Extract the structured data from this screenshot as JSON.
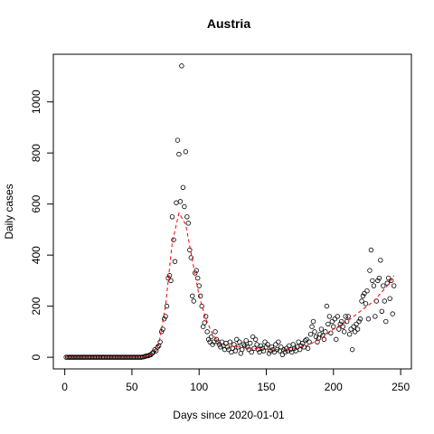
{
  "chart_data": {
    "type": "scatter",
    "title": "Austria",
    "xlabel": "Days since 2020-01-01",
    "ylabel": "Daily cases",
    "xlim": [
      -8.5,
      258
    ],
    "ylim": [
      -45.6,
      1186.6
    ],
    "xticks": [
      0,
      50,
      100,
      150,
      200,
      250
    ],
    "yticks": [
      0,
      200,
      400,
      600,
      800,
      1000
    ],
    "series": [
      {
        "color": "#000000",
        "marker": "open-circle",
        "x": [
          1,
          2,
          3,
          4,
          5,
          6,
          7,
          8,
          9,
          10,
          11,
          12,
          13,
          14,
          15,
          16,
          17,
          18,
          19,
          20,
          21,
          22,
          23,
          24,
          25,
          26,
          27,
          28,
          29,
          30,
          31,
          32,
          33,
          34,
          35,
          36,
          37,
          38,
          39,
          40,
          41,
          42,
          43,
          44,
          45,
          46,
          47,
          48,
          49,
          50,
          51,
          52,
          53,
          54,
          55,
          56,
          57,
          58,
          59,
          60,
          61,
          62,
          63,
          64,
          65,
          66,
          67,
          68,
          69,
          70,
          71,
          72,
          73,
          74,
          75,
          76,
          77,
          78,
          79,
          80,
          81,
          82,
          83,
          84,
          85,
          86,
          87,
          88,
          89,
          90,
          91,
          92,
          93,
          94,
          95,
          96,
          97,
          98,
          99,
          100,
          101,
          102,
          103,
          104,
          105,
          106,
          107,
          108,
          109,
          110,
          111,
          112,
          113,
          114,
          115,
          116,
          117,
          118,
          119,
          120,
          121,
          122,
          123,
          124,
          125,
          126,
          127,
          128,
          129,
          130,
          131,
          132,
          133,
          134,
          135,
          136,
          137,
          138,
          139,
          140,
          141,
          142,
          143,
          144,
          145,
          146,
          147,
          148,
          149,
          150,
          151,
          152,
          153,
          154,
          155,
          156,
          157,
          158,
          159,
          160,
          161,
          162,
          163,
          164,
          165,
          166,
          167,
          168,
          169,
          170,
          171,
          172,
          173,
          174,
          175,
          176,
          177,
          178,
          179,
          180,
          181,
          182,
          183,
          184,
          185,
          186,
          187,
          188,
          189,
          190,
          191,
          192,
          193,
          194,
          195,
          196,
          197,
          198,
          199,
          200,
          201,
          202,
          203,
          204,
          205,
          206,
          207,
          208,
          209,
          210,
          211,
          212,
          213,
          214,
          215,
          216,
          217,
          218,
          219,
          220,
          221,
          222,
          223,
          224,
          225,
          226,
          227,
          228,
          229,
          230,
          231,
          232,
          233,
          234,
          235,
          236,
          237,
          238,
          239,
          240,
          241,
          242,
          243,
          244,
          245
        ],
        "values": [
          0,
          0,
          0,
          0,
          0,
          0,
          0,
          0,
          0,
          0,
          0,
          0,
          0,
          0,
          0,
          0,
          0,
          0,
          0,
          0,
          0,
          0,
          0,
          0,
          0,
          0,
          0,
          0,
          0,
          0,
          0,
          0,
          0,
          0,
          0,
          0,
          0,
          0,
          0,
          0,
          0,
          0,
          0,
          0,
          0,
          0,
          0,
          0,
          0,
          0,
          0,
          0,
          0,
          0,
          0,
          0,
          0,
          1,
          2,
          4,
          5,
          6,
          8,
          10,
          15,
          20,
          30,
          25,
          40,
          45,
          60,
          100,
          110,
          150,
          160,
          200,
          310,
          320,
          300,
          550,
          460,
          375,
          605,
          850,
          795,
          610,
          1141,
          665,
          590,
          805,
          550,
          525,
          420,
          390,
          240,
          220,
          330,
          340,
          310,
          280,
          240,
          200,
          120,
          135,
          160,
          100,
          70,
          60,
          80,
          50,
          60,
          100,
          70,
          60,
          50,
          40,
          60,
          45,
          30,
          55,
          40,
          30,
          60,
          20,
          35,
          50,
          25,
          70,
          40,
          60,
          15,
          30,
          50,
          45,
          65,
          40,
          30,
          55,
          20,
          80,
          35,
          70,
          50,
          30,
          20,
          45,
          35,
          25,
          60,
          40,
          50,
          15,
          25,
          40,
          30,
          20,
          50,
          30,
          60,
          25,
          40,
          10,
          30,
          20,
          35,
          25,
          45,
          30,
          20,
          50,
          35,
          25,
          40,
          60,
          30,
          45,
          55,
          40,
          65,
          70,
          35,
          60,
          90,
          120,
          140,
          100,
          80,
          60,
          75,
          90,
          110,
          85,
          70,
          100,
          200,
          130,
          160,
          95,
          140,
          120,
          150,
          70,
          160,
          110,
          130,
          140,
          120,
          100,
          160,
          140,
          160,
          90,
          110,
          30,
          120,
          100,
          130,
          110,
          140,
          150,
          220,
          240,
          250,
          210,
          260,
          150,
          340,
          420,
          300,
          280,
          160,
          220,
          300,
          310,
          380,
          180,
          280,
          220,
          140,
          290,
          310,
          230,
          300,
          170,
          280
        ]
      },
      {
        "color": "#ff0000",
        "style": "dashed",
        "x": [
          1,
          10,
          20,
          30,
          40,
          50,
          55,
          60,
          65,
          70,
          75,
          80,
          85,
          90,
          95,
          100,
          105,
          110,
          115,
          120,
          130,
          140,
          150,
          160,
          170,
          180,
          190,
          200,
          210,
          220,
          230,
          240,
          245
        ],
        "values": [
          0,
          0,
          0,
          0,
          0,
          0,
          0,
          2,
          15,
          50,
          200,
          450,
          565,
          520,
          380,
          240,
          150,
          90,
          55,
          45,
          40,
          35,
          30,
          30,
          35,
          45,
          70,
          110,
          140,
          180,
          220,
          280,
          320
        ]
      }
    ]
  }
}
